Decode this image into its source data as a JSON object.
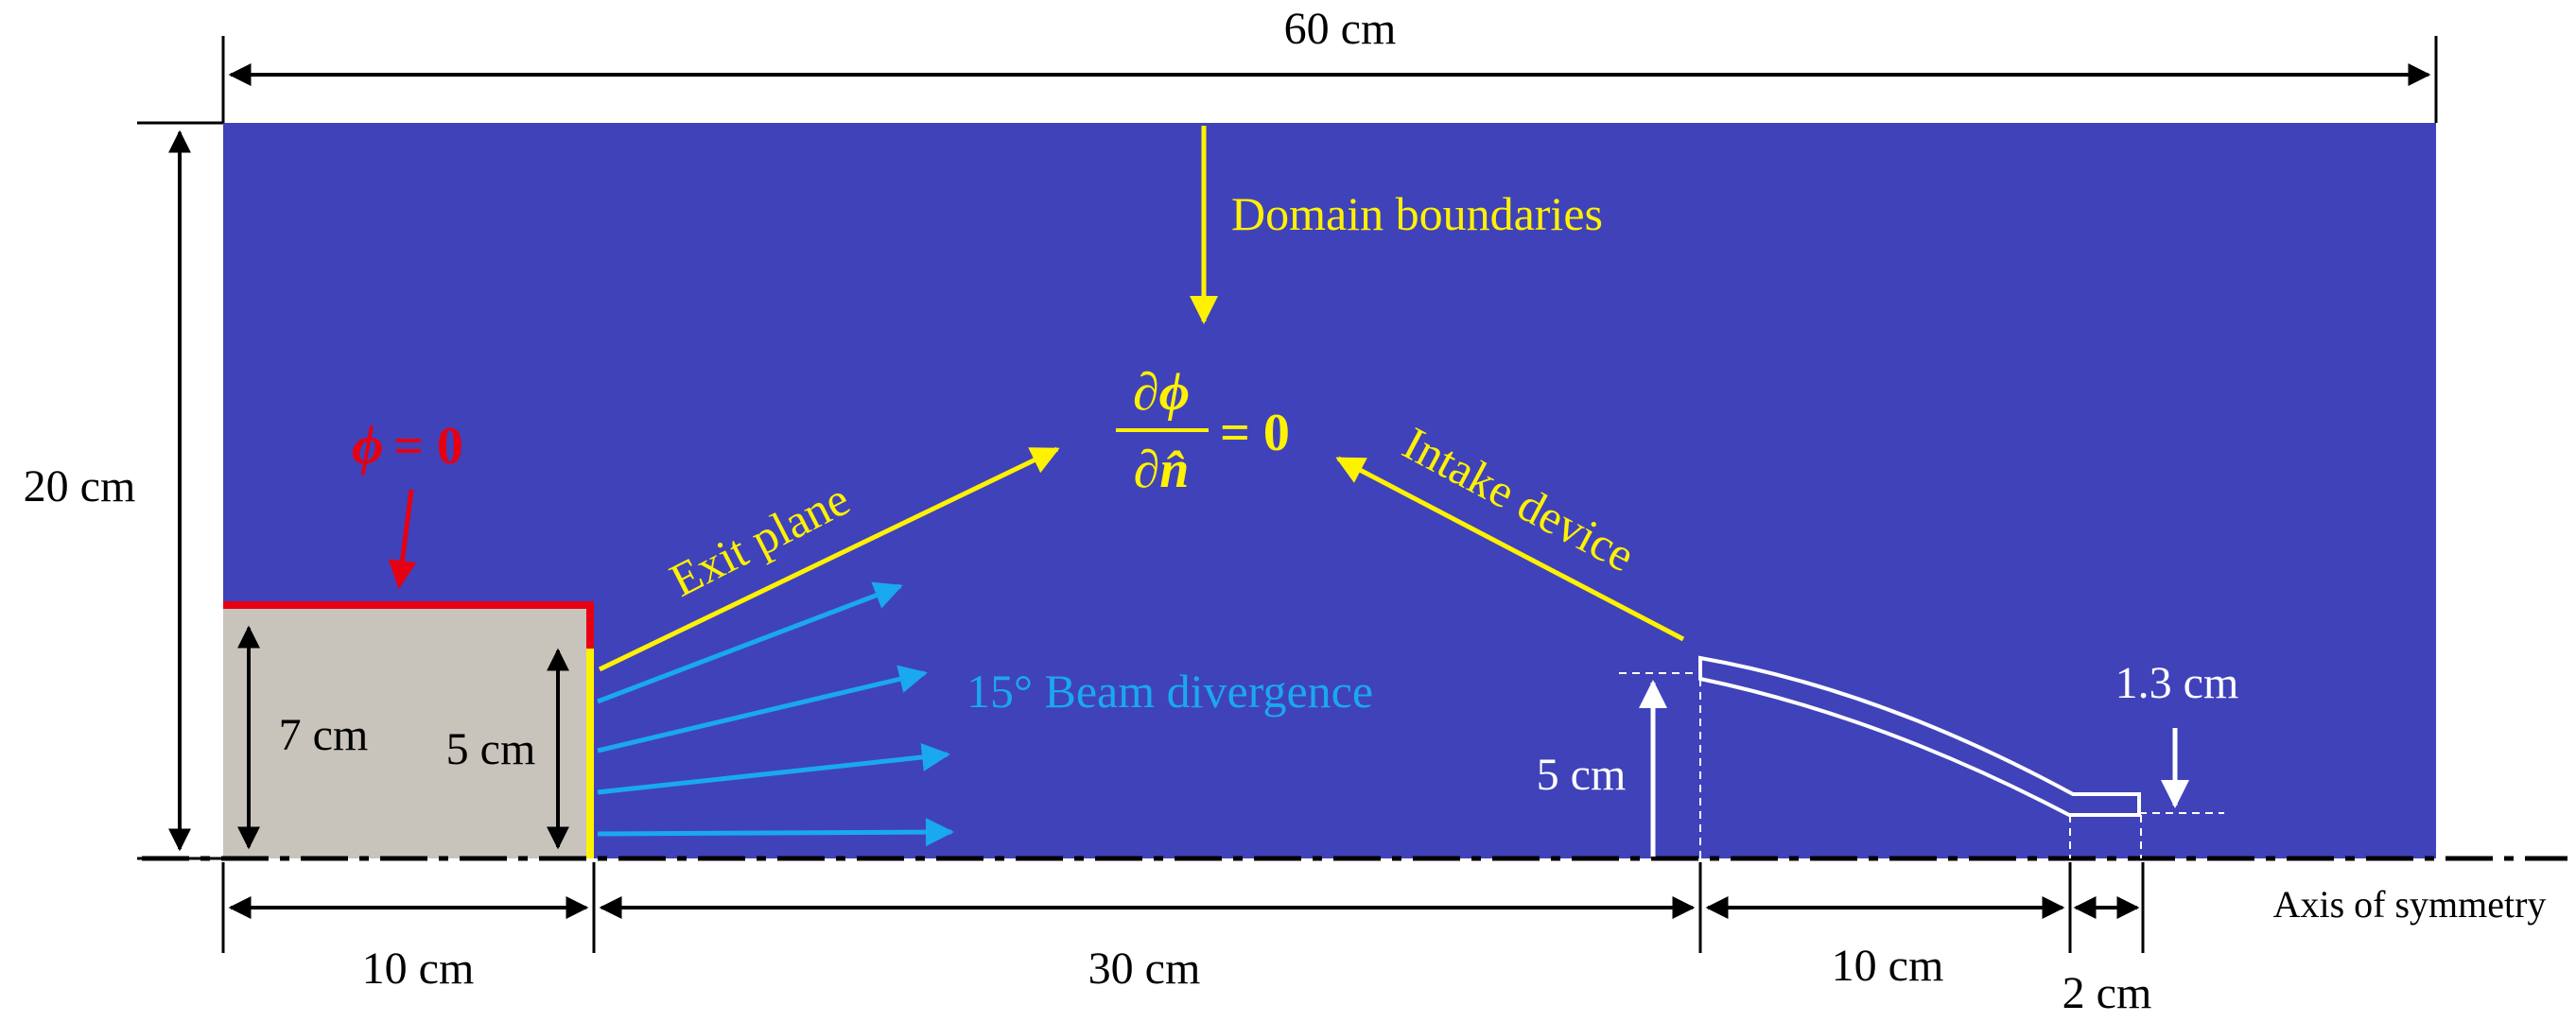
{
  "diagram": {
    "dimensions": {
      "top_width": "60 cm",
      "left_height": "20 cm",
      "thruster_height": "7 cm",
      "exit_height": "5 cm",
      "thruster_length": "10 cm",
      "gap_length": "30 cm",
      "intake_height": "5 cm",
      "intake_length": "10 cm",
      "intake_tail_length": "2 cm",
      "intake_tail_height": "1.3 cm"
    },
    "labels": {
      "domain_boundaries": "Domain boundaries",
      "exit_plane": "Exit plane",
      "intake_device": "Intake device",
      "beam_divergence": "15° Beam divergence",
      "axis_of_symmetry": "Axis of symmetry"
    },
    "equations": {
      "phi_symbol": "ϕ",
      "phi_equals": "= 0",
      "bc_numerator": "∂ϕ",
      "bc_denominator": "∂n̂",
      "bc_equals": "= 0"
    },
    "colors": {
      "domain_fill": "#4042BA",
      "thruster_fill": "#C8C4BB",
      "annotation_yellow": "#FFF200",
      "beam_blue": "#1AA8F0",
      "dirichlet_red": "#E60012",
      "white": "#FFFFFF",
      "black": "#000000"
    }
  }
}
